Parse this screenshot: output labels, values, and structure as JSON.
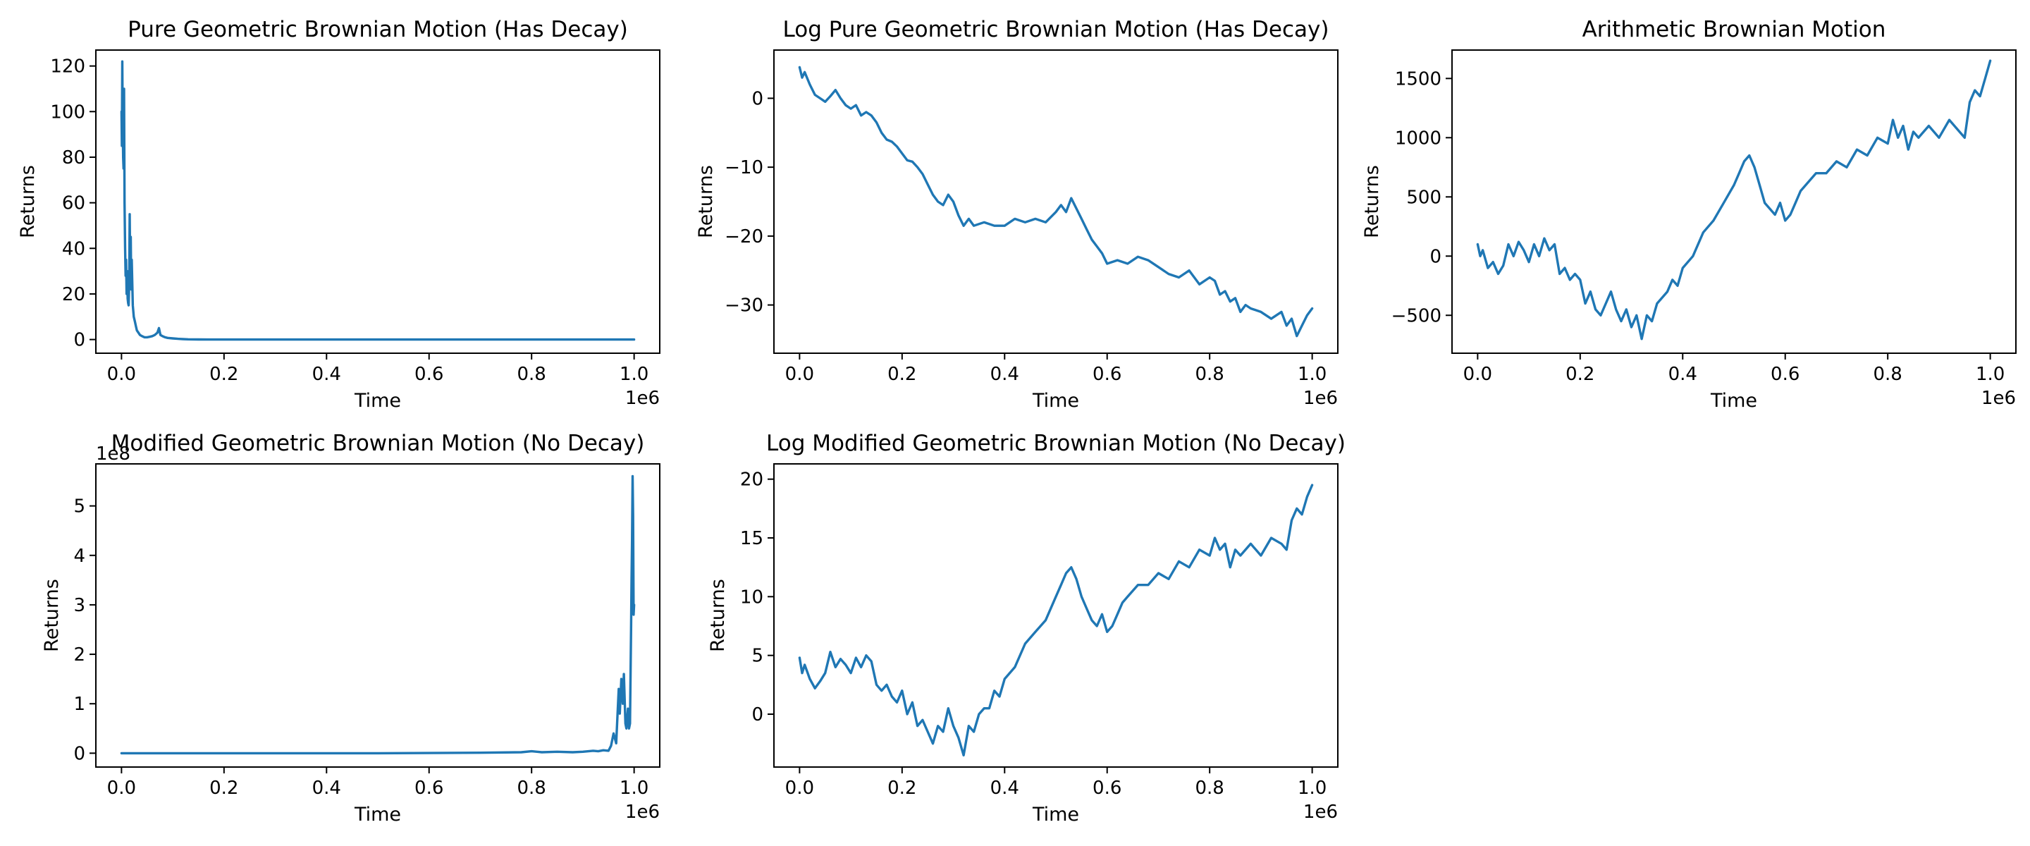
{
  "figure": {
    "line_color": "#1f77b4"
  },
  "chart_data": [
    {
      "type": "line",
      "title": "Pure Geometric Brownian Motion (Has Decay)",
      "xlabel": "Time",
      "ylabel": "Returns",
      "x_offset_label": "1e6",
      "y_offset_label": "",
      "xlim": [
        -50000,
        1050000
      ],
      "ylim": [
        -6,
        127
      ],
      "x_ticks": [
        0,
        200000,
        400000,
        600000,
        800000,
        1000000
      ],
      "x_tick_labels": [
        "0.0",
        "0.2",
        "0.4",
        "0.6",
        "0.8",
        "1.0"
      ],
      "y_ticks": [
        0,
        20,
        40,
        60,
        80,
        100,
        120
      ],
      "y_tick_labels": [
        "0",
        "20",
        "40",
        "60",
        "80",
        "100",
        "120"
      ],
      "grid": false,
      "series": [
        {
          "x": [
            0,
            800,
            1600,
            2400,
            3200,
            4000,
            5000,
            6000,
            7000,
            8000,
            9000,
            10000,
            11000,
            12000,
            13000,
            14000,
            15000,
            16000,
            17000,
            18000,
            19000,
            20000,
            22000,
            24000,
            26000,
            28000,
            30000,
            33000,
            36000,
            40000,
            45000,
            50000,
            55000,
            60000,
            65000,
            70000,
            73000,
            76000,
            80000,
            85000,
            90000,
            100000,
            110000,
            120000,
            130000,
            140000,
            150000,
            170000,
            200000,
            300000,
            400000,
            500000,
            600000,
            700000,
            800000,
            900000,
            1000000
          ],
          "y": [
            100,
            85,
            122,
            95,
            80,
            75,
            110,
            60,
            40,
            28,
            35,
            20,
            30,
            18,
            16,
            15,
            25,
            55,
            30,
            45,
            22,
            35,
            15,
            10,
            8,
            6,
            4,
            3,
            2,
            1.5,
            1,
            1,
            1.2,
            1.5,
            2,
            3,
            5,
            2,
            1.5,
            1,
            0.7,
            0.5,
            0.3,
            0.2,
            0.1,
            0.05,
            0.03,
            0.01,
            0,
            0,
            0,
            0,
            0,
            0,
            0,
            0,
            0
          ]
        }
      ]
    },
    {
      "type": "line",
      "title": "Log Pure Geometric Brownian Motion (Has Decay)",
      "xlabel": "Time",
      "ylabel": "Returns",
      "x_offset_label": "1e6",
      "y_offset_label": "",
      "xlim": [
        -50000,
        1050000
      ],
      "ylim": [
        -37,
        7
      ],
      "x_ticks": [
        0,
        200000,
        400000,
        600000,
        800000,
        1000000
      ],
      "x_tick_labels": [
        "0.0",
        "0.2",
        "0.4",
        "0.6",
        "0.8",
        "1.0"
      ],
      "y_ticks": [
        -30,
        -20,
        -10,
        0
      ],
      "y_tick_labels": [
        "−30",
        "−20",
        "−10",
        "0"
      ],
      "grid": false,
      "series": [
        {
          "x": [
            0,
            5000,
            10000,
            20000,
            30000,
            40000,
            50000,
            60000,
            70000,
            80000,
            90000,
            100000,
            110000,
            120000,
            130000,
            140000,
            150000,
            160000,
            170000,
            180000,
            190000,
            200000,
            210000,
            220000,
            230000,
            240000,
            250000,
            260000,
            270000,
            280000,
            290000,
            300000,
            310000,
            320000,
            330000,
            340000,
            360000,
            380000,
            400000,
            420000,
            440000,
            460000,
            480000,
            500000,
            510000,
            520000,
            530000,
            540000,
            550000,
            560000,
            570000,
            580000,
            590000,
            600000,
            620000,
            640000,
            660000,
            680000,
            700000,
            720000,
            740000,
            760000,
            780000,
            800000,
            810000,
            820000,
            830000,
            840000,
            850000,
            860000,
            870000,
            880000,
            900000,
            920000,
            940000,
            950000,
            960000,
            970000,
            980000,
            990000,
            1000000
          ],
          "y": [
            4.5,
            3,
            3.8,
            2,
            0.5,
            0,
            -0.5,
            0.3,
            1.2,
            0,
            -1,
            -1.5,
            -1,
            -2.5,
            -2,
            -2.5,
            -3.5,
            -5,
            -6,
            -6.3,
            -7,
            -8,
            -9,
            -9.2,
            -10,
            -11,
            -12.5,
            -14,
            -15,
            -15.5,
            -14,
            -15,
            -17,
            -18.5,
            -17.5,
            -18.5,
            -18,
            -18.5,
            -18.5,
            -17.5,
            -18,
            -17.5,
            -18,
            -16.5,
            -15.5,
            -16.5,
            -14.5,
            -16,
            -17.5,
            -19,
            -20.5,
            -21.5,
            -22.5,
            -24,
            -23.5,
            -24,
            -23,
            -23.5,
            -24.5,
            -25.5,
            -26,
            -25,
            -27,
            -26,
            -26.5,
            -28.5,
            -28,
            -29.5,
            -29,
            -31,
            -30,
            -30.5,
            -31,
            -32,
            -31,
            -33,
            -32,
            -34.5,
            -33,
            -31.5,
            -30.5
          ]
        }
      ]
    },
    {
      "type": "line",
      "title": "Arithmetic Brownian Motion",
      "xlabel": "Time",
      "ylabel": "Returns",
      "x_offset_label": "1e6",
      "y_offset_label": "",
      "xlim": [
        -50000,
        1050000
      ],
      "ylim": [
        -820,
        1740
      ],
      "x_ticks": [
        0,
        200000,
        400000,
        600000,
        800000,
        1000000
      ],
      "x_tick_labels": [
        "0.0",
        "0.2",
        "0.4",
        "0.6",
        "0.8",
        "1.0"
      ],
      "y_ticks": [
        -500,
        0,
        500,
        1000,
        1500
      ],
      "y_tick_labels": [
        "−500",
        "0",
        "500",
        "1000",
        "1500"
      ],
      "grid": false,
      "series": [
        {
          "x": [
            0,
            5000,
            10000,
            20000,
            30000,
            40000,
            50000,
            60000,
            70000,
            80000,
            90000,
            100000,
            110000,
            120000,
            130000,
            140000,
            150000,
            160000,
            170000,
            180000,
            190000,
            200000,
            210000,
            220000,
            230000,
            240000,
            250000,
            260000,
            270000,
            280000,
            290000,
            300000,
            310000,
            320000,
            330000,
            340000,
            350000,
            360000,
            370000,
            380000,
            390000,
            400000,
            420000,
            440000,
            460000,
            480000,
            500000,
            510000,
            520000,
            530000,
            540000,
            550000,
            560000,
            570000,
            580000,
            590000,
            600000,
            610000,
            620000,
            630000,
            640000,
            660000,
            680000,
            700000,
            720000,
            740000,
            760000,
            780000,
            800000,
            810000,
            820000,
            830000,
            840000,
            850000,
            860000,
            880000,
            900000,
            920000,
            940000,
            950000,
            960000,
            970000,
            980000,
            990000,
            1000000
          ],
          "y": [
            100,
            0,
            50,
            -100,
            -50,
            -150,
            -80,
            100,
            0,
            120,
            50,
            -50,
            100,
            0,
            150,
            50,
            100,
            -150,
            -100,
            -200,
            -150,
            -200,
            -400,
            -300,
            -450,
            -500,
            -400,
            -300,
            -450,
            -550,
            -450,
            -600,
            -500,
            -700,
            -500,
            -550,
            -400,
            -350,
            -300,
            -200,
            -250,
            -100,
            0,
            200,
            300,
            450,
            600,
            700,
            800,
            850,
            750,
            600,
            450,
            400,
            350,
            450,
            300,
            350,
            450,
            550,
            600,
            700,
            700,
            800,
            750,
            900,
            850,
            1000,
            950,
            1150,
            1000,
            1100,
            900,
            1050,
            1000,
            1100,
            1000,
            1150,
            1050,
            1000,
            1300,
            1400,
            1350,
            1500,
            1650
          ]
        }
      ]
    },
    {
      "type": "line",
      "title": "Modified Geometric Brownian Motion (No Decay)",
      "xlabel": "Time",
      "ylabel": "Returns",
      "x_offset_label": "1e6",
      "y_offset_label": "1e8",
      "xlim": [
        -50000,
        1050000
      ],
      "ylim": [
        -0.28,
        5.85
      ],
      "x_ticks": [
        0,
        200000,
        400000,
        600000,
        800000,
        1000000
      ],
      "x_tick_labels": [
        "0.0",
        "0.2",
        "0.4",
        "0.6",
        "0.8",
        "1.0"
      ],
      "y_ticks": [
        0,
        1,
        2,
        3,
        4,
        5
      ],
      "y_tick_labels": [
        "0",
        "1",
        "2",
        "3",
        "4",
        "5"
      ],
      "grid": false,
      "series": [
        {
          "x": [
            0,
            500000,
            700000,
            780000,
            800000,
            820000,
            850000,
            880000,
            900000,
            920000,
            930000,
            940000,
            950000,
            955000,
            960000,
            965000,
            970000,
            972000,
            975000,
            978000,
            980000,
            983000,
            985000,
            988000,
            990000,
            992000,
            994000,
            995000,
            996000,
            997000,
            998000,
            999000,
            1000000
          ],
          "y": [
            0,
            0,
            0.01,
            0.02,
            0.04,
            0.02,
            0.03,
            0.02,
            0.03,
            0.05,
            0.04,
            0.06,
            0.05,
            0.15,
            0.4,
            0.2,
            1.3,
            0.8,
            1.5,
            1.0,
            1.6,
            0.6,
            0.5,
            0.9,
            0.5,
            0.6,
            2.5,
            3.5,
            4.3,
            5.6,
            4.8,
            2.8,
            3.0
          ]
        }
      ]
    },
    {
      "type": "line",
      "title": "Log Modified Geometric Brownian Motion (No Decay)",
      "xlabel": "Time",
      "ylabel": "Returns",
      "x_offset_label": "1e6",
      "y_offset_label": "",
      "xlim": [
        -50000,
        1050000
      ],
      "ylim": [
        -4.5,
        21.3
      ],
      "x_ticks": [
        0,
        200000,
        400000,
        600000,
        800000,
        1000000
      ],
      "x_tick_labels": [
        "0.0",
        "0.2",
        "0.4",
        "0.6",
        "0.8",
        "1.0"
      ],
      "y_ticks": [
        0,
        5,
        10,
        15,
        20
      ],
      "y_tick_labels": [
        "0",
        "5",
        "10",
        "15",
        "20"
      ],
      "grid": false,
      "series": [
        {
          "x": [
            0,
            5000,
            10000,
            20000,
            30000,
            40000,
            50000,
            60000,
            70000,
            80000,
            90000,
            100000,
            110000,
            120000,
            130000,
            140000,
            150000,
            160000,
            170000,
            180000,
            190000,
            200000,
            210000,
            220000,
            230000,
            240000,
            250000,
            260000,
            270000,
            280000,
            290000,
            300000,
            310000,
            320000,
            330000,
            340000,
            350000,
            360000,
            370000,
            380000,
            390000,
            400000,
            420000,
            440000,
            460000,
            480000,
            500000,
            510000,
            520000,
            530000,
            540000,
            550000,
            560000,
            570000,
            580000,
            590000,
            600000,
            610000,
            620000,
            630000,
            640000,
            660000,
            680000,
            700000,
            720000,
            740000,
            760000,
            780000,
            800000,
            810000,
            820000,
            830000,
            840000,
            850000,
            860000,
            880000,
            900000,
            920000,
            940000,
            950000,
            960000,
            970000,
            980000,
            990000,
            1000000
          ],
          "y": [
            4.8,
            3.5,
            4.2,
            3,
            2.2,
            2.8,
            3.5,
            5.3,
            4,
            4.7,
            4.2,
            3.5,
            4.8,
            4,
            5,
            4.5,
            2.5,
            2,
            2.5,
            1.5,
            1,
            2,
            0,
            1,
            -1,
            -0.5,
            -1.5,
            -2.5,
            -1,
            -1.5,
            0.5,
            -1,
            -2,
            -3.5,
            -1,
            -1.5,
            0,
            0.5,
            0.5,
            2,
            1.5,
            3,
            4,
            6,
            7,
            8,
            10,
            11,
            12,
            12.5,
            11.5,
            10,
            9,
            8,
            7.5,
            8.5,
            7,
            7.5,
            8.5,
            9.5,
            10,
            11,
            11,
            12,
            11.5,
            13,
            12.5,
            14,
            13.5,
            15,
            14,
            14.5,
            12.5,
            14,
            13.5,
            14.5,
            13.5,
            15,
            14.5,
            14,
            16.5,
            17.5,
            17,
            18.5,
            19.5
          ]
        }
      ]
    }
  ]
}
